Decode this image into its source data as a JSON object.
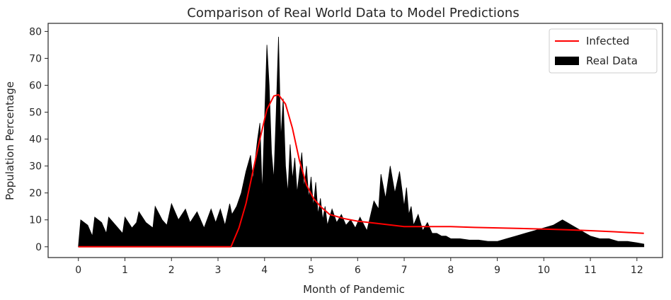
{
  "chart_data": {
    "type": "area",
    "title": "Comparison of Real World Data to Model Predictions",
    "xlabel": "Month of Pandemic",
    "ylabel": "Population Percentage",
    "xlim": [
      -0.65,
      12.55
    ],
    "ylim": [
      -4,
      83
    ],
    "xticks": [
      "0",
      "1",
      "2",
      "3",
      "4",
      "5",
      "6",
      "7",
      "8",
      "9",
      "10",
      "11",
      "12"
    ],
    "yticks": [
      "0",
      "10",
      "20",
      "30",
      "40",
      "50",
      "60",
      "70",
      "80"
    ],
    "grid": false,
    "legend_position": "top-right",
    "series": [
      {
        "name": "Infected",
        "kind": "line",
        "color": "#ff0000",
        "x": [
          0,
          1,
          2,
          3,
          3.28,
          3.45,
          3.6,
          3.75,
          3.9,
          4.05,
          4.2,
          4.3,
          4.45,
          4.6,
          4.75,
          4.9,
          5.05,
          5.2,
          5.4,
          5.7,
          6.0,
          6.5,
          7.0,
          7.5,
          8.0,
          8.5,
          9.0,
          9.5,
          10.0,
          10.5,
          11.0,
          11.5,
          12.15
        ],
        "y": [
          0,
          0,
          0,
          0,
          0,
          7,
          16,
          28,
          40,
          51,
          56,
          56.5,
          53,
          44,
          32,
          23,
          18,
          15,
          12,
          10.5,
          9.5,
          8.5,
          7.5,
          7.5,
          7.5,
          7.2,
          7.0,
          6.8,
          6.6,
          6.3,
          6.0,
          5.6,
          5.0
        ]
      },
      {
        "name": "Real Data",
        "kind": "fill",
        "color": "#000000",
        "x": [
          0,
          0.05,
          0.2,
          0.3,
          0.35,
          0.5,
          0.6,
          0.65,
          0.8,
          0.95,
          1.0,
          1.15,
          1.25,
          1.3,
          1.45,
          1.6,
          1.65,
          1.8,
          1.9,
          2.0,
          2.15,
          2.3,
          2.4,
          2.55,
          2.7,
          2.85,
          2.95,
          3.05,
          3.15,
          3.25,
          3.3,
          3.4,
          3.5,
          3.6,
          3.7,
          3.75,
          3.85,
          3.9,
          3.95,
          4.05,
          4.1,
          4.15,
          4.2,
          4.25,
          4.3,
          4.35,
          4.4,
          4.45,
          4.5,
          4.55,
          4.6,
          4.65,
          4.7,
          4.8,
          4.85,
          4.9,
          4.95,
          5.0,
          5.05,
          5.1,
          5.15,
          5.2,
          5.25,
          5.3,
          5.35,
          5.45,
          5.55,
          5.65,
          5.75,
          5.85,
          5.95,
          6.05,
          6.2,
          6.35,
          6.45,
          6.5,
          6.6,
          6.7,
          6.8,
          6.9,
          7.0,
          7.05,
          7.1,
          7.15,
          7.2,
          7.3,
          7.4,
          7.5,
          7.6,
          7.7,
          7.8,
          7.9,
          8.0,
          8.2,
          8.4,
          8.6,
          8.8,
          9.0,
          9.2,
          9.4,
          9.6,
          9.8,
          10.0,
          10.2,
          10.4,
          10.5,
          10.6,
          10.7,
          10.8,
          10.9,
          11.0,
          11.2,
          11.4,
          11.6,
          11.8,
          12.0,
          12.15
        ],
        "y": [
          0,
          10,
          8,
          4,
          11,
          9,
          5,
          11,
          8,
          5,
          11,
          7,
          9,
          13,
          9,
          7,
          15,
          10,
          8,
          16,
          10,
          14,
          9,
          13,
          7,
          14,
          9,
          14,
          8,
          16,
          12,
          15,
          20,
          28,
          34,
          25,
          40,
          46,
          20,
          75,
          60,
          35,
          25,
          50,
          78,
          40,
          55,
          30,
          20,
          38,
          25,
          33,
          20,
          35,
          22,
          30,
          18,
          26,
          15,
          24,
          12,
          18,
          10,
          15,
          8,
          14,
          9,
          12,
          8,
          10,
          7,
          11,
          6,
          17,
          14,
          27,
          18,
          30,
          20,
          28,
          15,
          22,
          12,
          15,
          8,
          12,
          6,
          9,
          5,
          5,
          4,
          4,
          3,
          3,
          2.5,
          2.5,
          2,
          2,
          3,
          4,
          5,
          6,
          7,
          8,
          10,
          9,
          8,
          7,
          6,
          5,
          4,
          3,
          3,
          2,
          2,
          1.5,
          1
        ]
      }
    ]
  }
}
